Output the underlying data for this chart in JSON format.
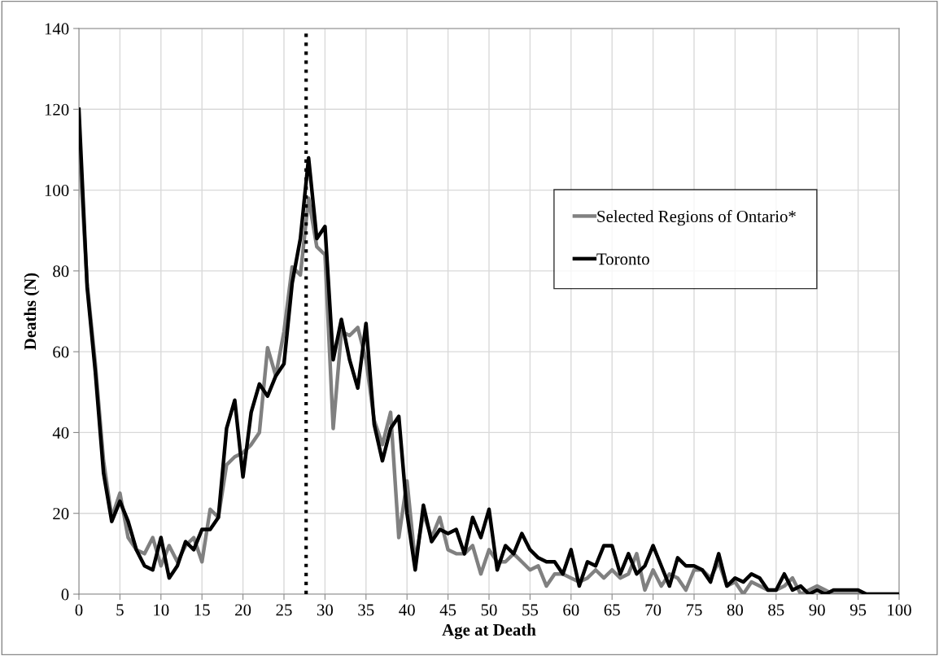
{
  "chart_data": {
    "type": "line",
    "xlabel": "Age at Death",
    "ylabel": "Deaths (N)",
    "x": [
      0,
      1,
      2,
      3,
      4,
      5,
      6,
      7,
      8,
      9,
      10,
      11,
      12,
      13,
      14,
      15,
      16,
      17,
      18,
      19,
      20,
      21,
      22,
      23,
      24,
      25,
      26,
      27,
      28,
      29,
      30,
      31,
      32,
      33,
      34,
      35,
      36,
      37,
      38,
      39,
      40,
      41,
      42,
      43,
      44,
      45,
      46,
      47,
      48,
      49,
      50,
      51,
      52,
      53,
      54,
      55,
      56,
      57,
      58,
      59,
      60,
      61,
      62,
      63,
      64,
      65,
      66,
      67,
      68,
      69,
      70,
      71,
      72,
      73,
      74,
      75,
      76,
      77,
      78,
      79,
      80,
      81,
      82,
      83,
      84,
      85,
      86,
      87,
      88,
      89,
      90,
      91,
      92,
      93,
      94,
      95,
      96,
      97,
      98,
      99,
      100
    ],
    "series": [
      {
        "name": "Selected Regions of Ontario*",
        "color": "#808080",
        "values": [
          112,
          77,
          57,
          33,
          19,
          25,
          14,
          11,
          10,
          14,
          7,
          12,
          8,
          12,
          14,
          8,
          21,
          19,
          32,
          34,
          35,
          37,
          40,
          61,
          54,
          65,
          81,
          79,
          98,
          86,
          84,
          41,
          65,
          64,
          66,
          58,
          43,
          37,
          45,
          14,
          28,
          8,
          20,
          14,
          19,
          11,
          10,
          10,
          12,
          5,
          11,
          8,
          8,
          10,
          8,
          6,
          7,
          2,
          5,
          5,
          4,
          3,
          4,
          6,
          4,
          6,
          4,
          5,
          10,
          1,
          6,
          2,
          5,
          4,
          1,
          6,
          6,
          4,
          8,
          2,
          3,
          0,
          3,
          2,
          1,
          1,
          2,
          4,
          0,
          1,
          2,
          1,
          0,
          0,
          0,
          0,
          0,
          0,
          0,
          0,
          0
        ]
      },
      {
        "name": "Toronto",
        "color": "#000000",
        "values": [
          120,
          76,
          55,
          30,
          18,
          23,
          18,
          11,
          7,
          6,
          14,
          4,
          7,
          13,
          11,
          16,
          16,
          19,
          41,
          48,
          29,
          45,
          52,
          49,
          54,
          57,
          77,
          88,
          108,
          88,
          91,
          58,
          68,
          58,
          51,
          67,
          42,
          33,
          41,
          44,
          20,
          6,
          22,
          13,
          16,
          15,
          16,
          10,
          19,
          14,
          21,
          6,
          12,
          10,
          15,
          11,
          9,
          8,
          8,
          5,
          11,
          2,
          8,
          7,
          12,
          12,
          5,
          10,
          5,
          7,
          12,
          7,
          2,
          9,
          7,
          7,
          6,
          3,
          10,
          2,
          4,
          3,
          5,
          4,
          1,
          1,
          5,
          1,
          2,
          0,
          1,
          0,
          1,
          1,
          1,
          1,
          0,
          0,
          0,
          0,
          0
        ]
      }
    ],
    "xlim": [
      0,
      100
    ],
    "xticks": [
      0,
      5,
      10,
      15,
      20,
      25,
      30,
      35,
      40,
      45,
      50,
      55,
      60,
      65,
      70,
      75,
      80,
      85,
      90,
      95,
      100
    ],
    "ylim": [
      0,
      140
    ],
    "yticks": [
      0,
      20,
      40,
      60,
      80,
      100,
      120,
      140
    ],
    "ref_lines": [
      {
        "axis": "x",
        "value": 27.7,
        "color": "#000000",
        "line_style": "dotted"
      }
    ],
    "grid": true,
    "legend": "top right",
    "line_style": "solid",
    "marker": "none"
  }
}
